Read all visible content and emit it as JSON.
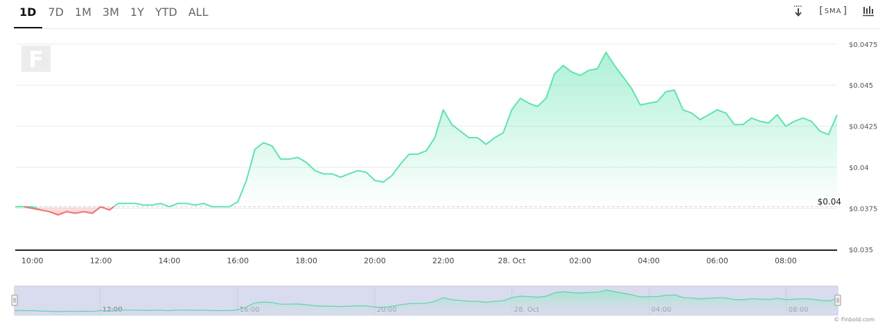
{
  "tabs": [
    {
      "label": "1D",
      "active": true
    },
    {
      "label": "7D",
      "active": false
    },
    {
      "label": "1M",
      "active": false
    },
    {
      "label": "3M",
      "active": false
    },
    {
      "label": "1Y",
      "active": false
    },
    {
      "label": "YTD",
      "active": false
    },
    {
      "label": "ALL",
      "active": false
    }
  ],
  "toolbar": {
    "download_icon": "download-icon",
    "sma_label": "SMA",
    "chart_type_icon": "candlestick-icon"
  },
  "watermark_text": "F",
  "copyright": "© Finbold.com",
  "colors": {
    "up": "#5ee3ad",
    "down": "#f07070",
    "fill_up": "#d6f7ea",
    "fill_down": "#fbd6d6",
    "navigator_bg": "#d8dcee"
  },
  "chart_data": {
    "type": "area",
    "baseline": 0.0376,
    "baseline_label": "$0.04",
    "ylim": [
      0.035,
      0.0485
    ],
    "y_ticks": [
      {
        "value": 0.0475,
        "label": "$0.0475"
      },
      {
        "value": 0.045,
        "label": "$0.045"
      },
      {
        "value": 0.0425,
        "label": "$0.0425"
      },
      {
        "value": 0.04,
        "label": "$0.04"
      },
      {
        "value": 0.0375,
        "label": "$0.0375"
      },
      {
        "value": 0.035,
        "label": "$0.035"
      }
    ],
    "x_start_hours": 9.5,
    "x_end_hours": 33.5,
    "x_ticks": [
      {
        "hours": 10,
        "label": "10:00"
      },
      {
        "hours": 12,
        "label": "12:00"
      },
      {
        "hours": 14,
        "label": "14:00"
      },
      {
        "hours": 16,
        "label": "16:00"
      },
      {
        "hours": 18,
        "label": "18:00"
      },
      {
        "hours": 20,
        "label": "20:00"
      },
      {
        "hours": 22,
        "label": "22:00"
      },
      {
        "hours": 24,
        "label": "28. Oct"
      },
      {
        "hours": 26,
        "label": "02:00"
      },
      {
        "hours": 28,
        "label": "04:00"
      },
      {
        "hours": 30,
        "label": "06:00"
      },
      {
        "hours": 32,
        "label": "08:00"
      }
    ],
    "navigator_ticks": [
      {
        "hours": 12,
        "label": "12:00"
      },
      {
        "hours": 16,
        "label": "16:00"
      },
      {
        "hours": 20,
        "label": "20:00"
      },
      {
        "hours": 24,
        "label": "28. Oct"
      },
      {
        "hours": 28,
        "label": "04:00"
      },
      {
        "hours": 32,
        "label": "08:00"
      }
    ],
    "series": [
      {
        "x": [
          9.5,
          9.75,
          10.0,
          10.25,
          10.5,
          10.75,
          11.0,
          11.25,
          11.5,
          11.75,
          12.0,
          12.25,
          12.5,
          12.75,
          13.0,
          13.25,
          13.5,
          13.75,
          14.0,
          14.25,
          14.5,
          14.75,
          15.0,
          15.25,
          15.5,
          15.75,
          16.0,
          16.25,
          16.5,
          16.75,
          17.0,
          17.25,
          17.5,
          17.75,
          18.0,
          18.25,
          18.5,
          18.75,
          19.0,
          19.25,
          19.5,
          19.75,
          20.0,
          20.25,
          20.5,
          20.75,
          21.0,
          21.25,
          21.5,
          21.75,
          22.0,
          22.25,
          22.5,
          22.75,
          23.0,
          23.25,
          23.5,
          23.75,
          24.0,
          24.25,
          24.5,
          24.75,
          25.0,
          25.25,
          25.5,
          25.75,
          26.0,
          26.25,
          26.5,
          26.75,
          27.0,
          27.25,
          27.5,
          27.75,
          28.0,
          28.25,
          28.5,
          28.75,
          29.0,
          29.25,
          29.5,
          29.75,
          30.0,
          30.25,
          30.5,
          30.75,
          31.0,
          31.25,
          31.5,
          31.75,
          32.0,
          32.25,
          32.5,
          32.75,
          33.0,
          33.25,
          33.5
        ],
        "y": [
          0.0376,
          0.0376,
          0.0376,
          0.0374,
          0.0373,
          0.0371,
          0.0373,
          0.0372,
          0.0373,
          0.0372,
          0.0376,
          0.0374,
          0.0378,
          0.0378,
          0.0378,
          0.0377,
          0.0377,
          0.0378,
          0.0376,
          0.0378,
          0.0378,
          0.0377,
          0.0378,
          0.0376,
          0.0376,
          0.0376,
          0.0379,
          0.0392,
          0.0411,
          0.0415,
          0.0413,
          0.0405,
          0.0405,
          0.0406,
          0.0403,
          0.0398,
          0.0396,
          0.0396,
          0.0394,
          0.0396,
          0.0398,
          0.0397,
          0.0392,
          0.0391,
          0.0395,
          0.0402,
          0.0408,
          0.0408,
          0.041,
          0.0418,
          0.0435,
          0.0426,
          0.0422,
          0.0418,
          0.0418,
          0.0414,
          0.0418,
          0.0421,
          0.0435,
          0.0442,
          0.0439,
          0.0437,
          0.0442,
          0.0457,
          0.0462,
          0.0458,
          0.0456,
          0.0459,
          0.046,
          0.047,
          0.0462,
          0.0455,
          0.0448,
          0.0438,
          0.0439,
          0.044,
          0.0446,
          0.0447,
          0.0435,
          0.0433,
          0.0429,
          0.0432,
          0.0435,
          0.0433,
          0.0426,
          0.0426,
          0.043,
          0.0428,
          0.0427,
          0.0432,
          0.0425,
          0.0428,
          0.043,
          0.0428,
          0.0422,
          0.042,
          0.0432
        ]
      }
    ]
  }
}
